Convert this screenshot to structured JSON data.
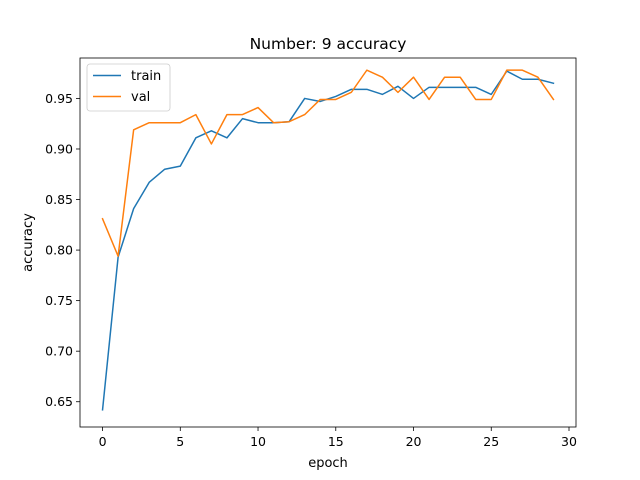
{
  "chart_data": {
    "type": "line",
    "title": "Number: 9 accuracy",
    "xlabel": "epoch",
    "ylabel": "accuracy",
    "xlim": [
      -1.45,
      30.45
    ],
    "ylim": [
      0.625,
      0.99
    ],
    "xticks": [
      0,
      5,
      10,
      15,
      20,
      25,
      30
    ],
    "yticks": [
      0.65,
      0.7,
      0.75,
      0.8,
      0.85,
      0.9,
      0.95
    ],
    "grid": false,
    "legend_position": "top-left",
    "x": [
      0,
      1,
      2,
      3,
      4,
      5,
      6,
      7,
      8,
      9,
      10,
      11,
      12,
      13,
      14,
      15,
      16,
      17,
      18,
      19,
      20,
      21,
      22,
      23,
      24,
      25,
      26,
      27,
      28,
      29
    ],
    "series": [
      {
        "name": "train",
        "color": "#1f77b4",
        "values": [
          0.642,
          0.793,
          0.841,
          0.867,
          0.88,
          0.883,
          0.911,
          0.918,
          0.911,
          0.93,
          0.926,
          0.926,
          0.927,
          0.95,
          0.947,
          0.952,
          0.959,
          0.959,
          0.954,
          0.962,
          0.95,
          0.961,
          0.961,
          0.961,
          0.961,
          0.954,
          0.977,
          0.969,
          0.969,
          0.965
        ]
      },
      {
        "name": "val",
        "color": "#ff7f0e",
        "values": [
          0.831,
          0.794,
          0.919,
          0.926,
          0.926,
          0.926,
          0.934,
          0.905,
          0.934,
          0.934,
          0.941,
          0.926,
          0.927,
          0.934,
          0.949,
          0.949,
          0.956,
          0.978,
          0.971,
          0.956,
          0.971,
          0.949,
          0.971,
          0.971,
          0.949,
          0.949,
          0.978,
          0.978,
          0.971,
          0.949
        ]
      }
    ]
  }
}
